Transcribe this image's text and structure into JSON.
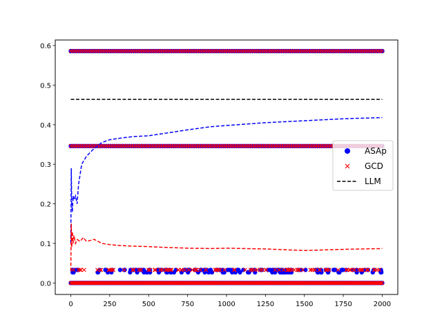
{
  "colors": {
    "asap": "#0000ff",
    "gcd": "#ff0000",
    "llm": "#000000"
  },
  "chart_data": {
    "type": "scatter",
    "title": "",
    "xlabel": "",
    "ylabel": "",
    "xlim": [
      -100,
      2100
    ],
    "ylim": [
      -0.029,
      0.614
    ],
    "xticks": [
      0,
      250,
      500,
      750,
      1000,
      1250,
      1500,
      1750,
      2000
    ],
    "xtick_labels": [
      "0",
      "250",
      "500",
      "750",
      "1000",
      "1250",
      "1500",
      "1750",
      "2000"
    ],
    "yticks": [
      0.0,
      0.1,
      0.2,
      0.3,
      0.4,
      0.5,
      0.6
    ],
    "ytick_labels": [
      "0.0",
      "0.1",
      "0.2",
      "0.3",
      "0.4",
      "0.5",
      "0.6"
    ],
    "grid": false,
    "legend_position": "center-right",
    "legend": [
      {
        "label": "ASAp",
        "marker": "circle",
        "color": "#0000ff"
      },
      {
        "label": "GCD",
        "marker": "x",
        "color": "#ff0000"
      },
      {
        "label": "LLM",
        "marker": "dashed-line",
        "color": "#000000"
      }
    ],
    "scatter_levels": [
      0.586,
      0.346,
      0.033,
      0.027,
      0.0
    ],
    "x_range": [
      0,
      2000
    ],
    "series": [
      {
        "name": "ASAp",
        "kind": "scatter",
        "marker": "circle",
        "color": "#0000ff",
        "points_desc": "dense points at y=0.586, 0.346, 0.033, 0.027 and 0.0 across x=0..2000",
        "running_mean": [
          [
            0,
            0.1
          ],
          [
            3,
            0.29
          ],
          [
            6,
            0.2
          ],
          [
            10,
            0.18
          ],
          [
            15,
            0.22
          ],
          [
            20,
            0.21
          ],
          [
            30,
            0.22
          ],
          [
            40,
            0.2
          ],
          [
            50,
            0.25
          ],
          [
            70,
            0.3
          ],
          [
            100,
            0.32
          ],
          [
            150,
            0.34
          ],
          [
            200,
            0.355
          ],
          [
            250,
            0.362
          ],
          [
            300,
            0.365
          ],
          [
            400,
            0.37
          ],
          [
            500,
            0.372
          ],
          [
            600,
            0.378
          ],
          [
            750,
            0.387
          ],
          [
            900,
            0.395
          ],
          [
            1000,
            0.398
          ],
          [
            1250,
            0.405
          ],
          [
            1500,
            0.41
          ],
          [
            1750,
            0.415
          ],
          [
            2000,
            0.418
          ]
        ]
      },
      {
        "name": "GCD",
        "kind": "scatter",
        "marker": "x",
        "color": "#ff0000",
        "points_desc": "dense points at y=0.586, 0.346, 0.033 and 0.0 across x=0..2000",
        "running_mean": [
          [
            0,
            0.03
          ],
          [
            3,
            0.15
          ],
          [
            6,
            0.09
          ],
          [
            10,
            0.13
          ],
          [
            15,
            0.1
          ],
          [
            20,
            0.12
          ],
          [
            30,
            0.1
          ],
          [
            40,
            0.11
          ],
          [
            60,
            0.105
          ],
          [
            80,
            0.115
          ],
          [
            100,
            0.105
          ],
          [
            150,
            0.11
          ],
          [
            200,
            0.1
          ],
          [
            250,
            0.097
          ],
          [
            300,
            0.095
          ],
          [
            400,
            0.093
          ],
          [
            500,
            0.092
          ],
          [
            600,
            0.09
          ],
          [
            750,
            0.088
          ],
          [
            900,
            0.087
          ],
          [
            1000,
            0.088
          ],
          [
            1250,
            0.086
          ],
          [
            1500,
            0.082
          ],
          [
            1750,
            0.085
          ],
          [
            2000,
            0.087
          ]
        ]
      },
      {
        "name": "LLM",
        "kind": "line",
        "style": "dashed",
        "color": "#000000",
        "values": [
          [
            0,
            0.464
          ],
          [
            2000,
            0.464
          ]
        ]
      }
    ]
  }
}
